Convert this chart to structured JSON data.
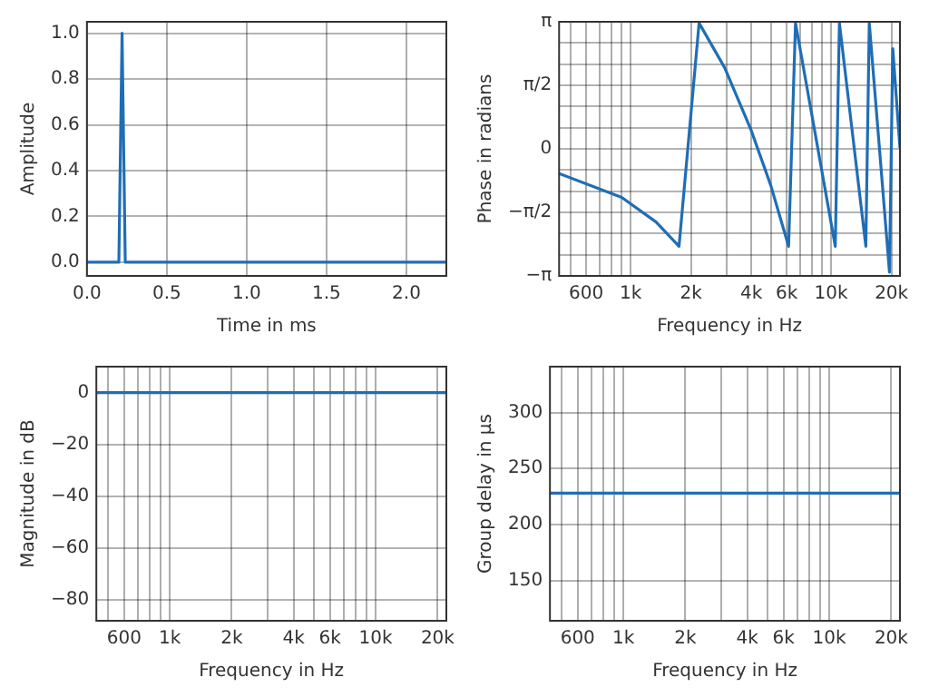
{
  "chart_data": [
    {
      "type": "line",
      "xlabel": "Time in ms",
      "ylabel": "Amplitude",
      "color": "#1f6eb5",
      "grid": true,
      "legend": false,
      "x": [
        0,
        0.2,
        0.22,
        0.24,
        2.25
      ],
      "values": [
        0,
        0,
        1,
        0,
        0
      ],
      "xlim": [
        0,
        2.25
      ],
      "ylim": [
        -0.06,
        1.05
      ],
      "xticks": [
        {
          "value": 0,
          "label": "0.0"
        },
        {
          "value": 0.5,
          "label": "0.5"
        },
        {
          "value": 1,
          "label": "1.0"
        },
        {
          "value": 1.5,
          "label": "1.5"
        },
        {
          "value": 2,
          "label": "2.0"
        }
      ],
      "yticks": [
        {
          "value": 0,
          "label": "0.0"
        },
        {
          "value": 0.2,
          "label": "0.2"
        },
        {
          "value": 0.4,
          "label": "0.4"
        },
        {
          "value": 0.6,
          "label": "0.6"
        },
        {
          "value": 0.8,
          "label": "0.8"
        },
        {
          "value": 1,
          "label": "1.0"
        }
      ]
    },
    {
      "type": "line",
      "xlabel": "Frequency in Hz",
      "ylabel": "Phase in radians",
      "color": "#1f6eb5",
      "grid": true,
      "legend": false,
      "log": "x",
      "x": [
        440,
        903,
        1340,
        1744,
        2196,
        2950,
        4000,
        5000,
        6137,
        6645,
        10490,
        11000,
        14900,
        15500,
        19550,
        20300,
        22050
      ],
      "values": [
        -0.61,
        -1.2,
        -1.81,
        -2.41,
        3.11,
        2.0,
        0.45,
        -0.9,
        -2.41,
        3.11,
        -2.41,
        3.11,
        -2.41,
        3.11,
        -3.05,
        2.48,
        0.02
      ],
      "xlim": [
        440,
        22050
      ],
      "ylim": [
        -3.1416,
        3.1416
      ],
      "xticks": [
        {
          "value": 500,
          "label": null
        },
        {
          "value": 600,
          "label": "600"
        },
        {
          "value": 700,
          "label": null
        },
        {
          "value": 800,
          "label": null
        },
        {
          "value": 900,
          "label": null
        },
        {
          "value": 1000,
          "label": "1k"
        },
        {
          "value": 2000,
          "label": "2k"
        },
        {
          "value": 3000,
          "label": null
        },
        {
          "value": 4000,
          "label": "4k"
        },
        {
          "value": 5000,
          "label": null
        },
        {
          "value": 6000,
          "label": "6k"
        },
        {
          "value": 7000,
          "label": null
        },
        {
          "value": 8000,
          "label": null
        },
        {
          "value": 9000,
          "label": null
        },
        {
          "value": 10000,
          "label": "10k"
        },
        {
          "value": 20000,
          "label": "20k"
        }
      ],
      "yticks": [
        {
          "value": -3.1416,
          "label": "−π"
        },
        {
          "value": -2.618,
          "label": null
        },
        {
          "value": -2.0944,
          "label": null
        },
        {
          "value": -1.5708,
          "label": "−π/2"
        },
        {
          "value": -1.0472,
          "label": null
        },
        {
          "value": -0.5236,
          "label": null
        },
        {
          "value": 0,
          "label": "0"
        },
        {
          "value": 0.5236,
          "label": null
        },
        {
          "value": 1.0472,
          "label": null
        },
        {
          "value": 1.5708,
          "label": "π/2"
        },
        {
          "value": 2.0944,
          "label": null
        },
        {
          "value": 2.618,
          "label": null
        },
        {
          "value": 3.1416,
          "label": "π"
        }
      ]
    },
    {
      "type": "line",
      "xlabel": "Frequency in Hz",
      "ylabel": "Magnitude in dB",
      "color": "#1f6eb5",
      "grid": true,
      "legend": false,
      "log": "x",
      "x": [
        440,
        22050
      ],
      "values": [
        0,
        0
      ],
      "xlim": [
        440,
        22050
      ],
      "ylim": [
        -88,
        10
      ],
      "xticks": [
        {
          "value": 500,
          "label": null
        },
        {
          "value": 600,
          "label": "600"
        },
        {
          "value": 700,
          "label": null
        },
        {
          "value": 800,
          "label": null
        },
        {
          "value": 900,
          "label": null
        },
        {
          "value": 1000,
          "label": "1k"
        },
        {
          "value": 2000,
          "label": "2k"
        },
        {
          "value": 3000,
          "label": null
        },
        {
          "value": 4000,
          "label": "4k"
        },
        {
          "value": 5000,
          "label": null
        },
        {
          "value": 6000,
          "label": "6k"
        },
        {
          "value": 7000,
          "label": null
        },
        {
          "value": 8000,
          "label": null
        },
        {
          "value": 9000,
          "label": null
        },
        {
          "value": 10000,
          "label": "10k"
        },
        {
          "value": 20000,
          "label": "20k"
        }
      ],
      "yticks": [
        {
          "value": -80,
          "label": "−80"
        },
        {
          "value": -60,
          "label": "−60"
        },
        {
          "value": -40,
          "label": "−40"
        },
        {
          "value": -20,
          "label": "−20"
        },
        0
      ]
    },
    {
      "type": "line",
      "xlabel": "Frequency in Hz",
      "ylabel": "Group delay in µs",
      "color": "#1f6eb5",
      "grid": true,
      "legend": false,
      "log": "x",
      "x": [
        440,
        22050
      ],
      "values": [
        228,
        228
      ],
      "xlim": [
        440,
        22050
      ],
      "ylim": [
        114,
        341
      ],
      "xticks": [
        {
          "value": 500,
          "label": null
        },
        {
          "value": 600,
          "label": "600"
        },
        {
          "value": 700,
          "label": null
        },
        {
          "value": 800,
          "label": null
        },
        {
          "value": 900,
          "label": null
        },
        {
          "value": 1000,
          "label": "1k"
        },
        {
          "value": 2000,
          "label": "2k"
        },
        {
          "value": 3000,
          "label": null
        },
        {
          "value": 4000,
          "label": "4k"
        },
        {
          "value": 5000,
          "label": null
        },
        {
          "value": 6000,
          "label": "6k"
        },
        {
          "value": 7000,
          "label": null
        },
        {
          "value": 8000,
          "label": null
        },
        {
          "value": 9000,
          "label": null
        },
        {
          "value": 10000,
          "label": "10k"
        },
        {
          "value": 20000,
          "label": "20k"
        }
      ],
      "yticks": [
        150,
        200,
        250,
        300
      ]
    }
  ]
}
